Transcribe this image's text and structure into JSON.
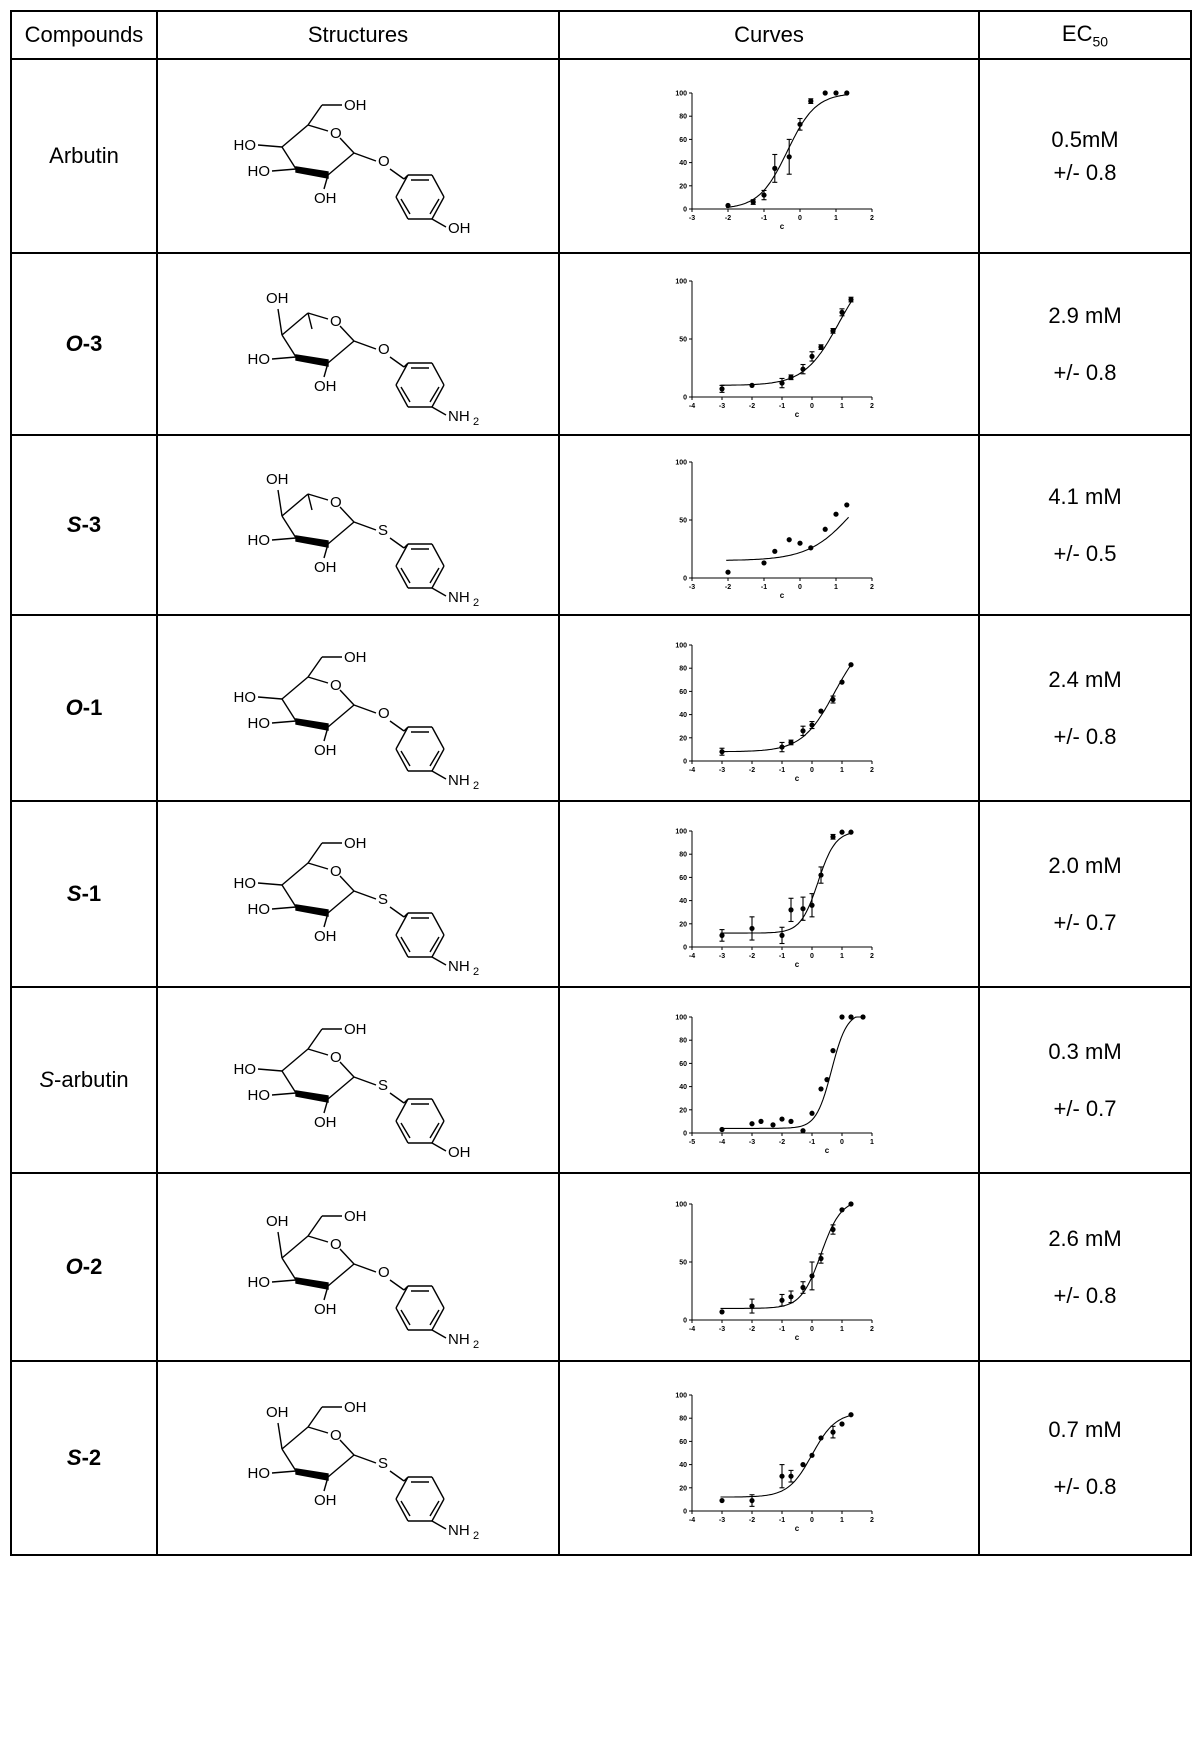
{
  "table": {
    "headers": {
      "compounds": "Compounds",
      "structures": "Structures",
      "curves": "Curves",
      "ec50_main": "EC",
      "ec50_sub": "50"
    }
  },
  "rows": [
    {
      "prefix": "",
      "suffix": "Arbutin",
      "style": "plain",
      "ec_value": "0.5mM",
      "ec_err": "+/- 0.8",
      "gap": false,
      "structure": {
        "sugar": "glc",
        "link": "O",
        "tail": "OH"
      }
    },
    {
      "prefix": "O",
      "suffix": "-3",
      "style": "bold",
      "ec_value": "2.9 mM",
      "ec_err": "+/- 0.8",
      "gap": true,
      "structure": {
        "sugar": "fuc",
        "link": "O",
        "tail": "NH"
      }
    },
    {
      "prefix": "S",
      "suffix": "-3",
      "style": "bold",
      "ec_value": "4.1 mM",
      "ec_err": "+/- 0.5",
      "gap": true,
      "structure": {
        "sugar": "fuc",
        "link": "S",
        "tail": "NH"
      }
    },
    {
      "prefix": "O",
      "suffix": "-1",
      "style": "bold",
      "ec_value": "2.4 mM",
      "ec_err": "+/- 0.8",
      "gap": true,
      "structure": {
        "sugar": "glc",
        "link": "O",
        "tail": "NH"
      }
    },
    {
      "prefix": "S",
      "suffix": "-1",
      "style": "bold",
      "ec_value": "2.0 mM",
      "ec_err": "+/- 0.7",
      "gap": true,
      "structure": {
        "sugar": "glc",
        "link": "S",
        "tail": "NH"
      }
    },
    {
      "prefix": "S",
      "suffix": "-arbutin",
      "style": "italic-prefix",
      "ec_value": "0.3 mM",
      "ec_err": "+/- 0.7",
      "gap": true,
      "structure": {
        "sugar": "glc",
        "link": "S",
        "tail": "OH"
      }
    },
    {
      "prefix": "O",
      "suffix": "-2",
      "style": "bold",
      "ec_value": "2.6 mM",
      "ec_err": "+/- 0.8",
      "gap": true,
      "structure": {
        "sugar": "gal",
        "link": "O",
        "tail": "NH"
      }
    },
    {
      "prefix": "S",
      "suffix": "-2",
      "style": "bold",
      "ec_value": "0.7 mM",
      "ec_err": "+/- 0.8",
      "gap": true,
      "structure": {
        "sugar": "gal",
        "link": "S",
        "tail": "NH"
      }
    }
  ],
  "chem_labels": {
    "hydroxyl": "OH",
    "hydroxyl_left": "HO",
    "oxygen": "O",
    "sulfur": "S",
    "amine": "NH",
    "amine_sub": "2"
  },
  "chart_data": [
    {
      "type": "scatter",
      "xlabel": "c",
      "xlim": [
        -3,
        2
      ],
      "ylim": [
        0,
        100
      ],
      "xticks": [
        -3,
        -2,
        -1,
        0,
        1,
        2
      ],
      "yticks": [
        0,
        20,
        40,
        60,
        80,
        100
      ],
      "points": [
        [
          -2,
          3,
          0
        ],
        [
          -1.3,
          6,
          2
        ],
        [
          -1,
          12,
          4
        ],
        [
          -0.7,
          35,
          12
        ],
        [
          -0.3,
          45,
          15
        ],
        [
          0,
          73,
          5
        ],
        [
          0.3,
          93,
          2
        ],
        [
          0.7,
          100,
          0
        ],
        [
          1,
          100,
          0
        ],
        [
          1.3,
          100,
          0
        ]
      ],
      "fit": {
        "bottom": 0,
        "top": 100,
        "logec50": -0.35,
        "hill": 1.1
      }
    },
    {
      "type": "scatter",
      "xlabel": "c",
      "xlim": [
        -4,
        2
      ],
      "ylim": [
        0,
        100
      ],
      "xticks": [
        -4,
        -3,
        -2,
        -1,
        0,
        1,
        2
      ],
      "yticks": [
        0,
        50,
        100
      ],
      "points": [
        [
          -3,
          7,
          3
        ],
        [
          -2,
          10,
          0
        ],
        [
          -1,
          12,
          4
        ],
        [
          -0.7,
          17,
          2
        ],
        [
          -0.3,
          24,
          4
        ],
        [
          0,
          35,
          4
        ],
        [
          0.3,
          43,
          2
        ],
        [
          0.7,
          57,
          2
        ],
        [
          1,
          73,
          3
        ],
        [
          1.3,
          84,
          2
        ]
      ],
      "fit": {
        "bottom": 10,
        "top": 118,
        "logec50": 0.9,
        "hill": 0.75
      }
    },
    {
      "type": "scatter",
      "xlabel": "c",
      "xlim": [
        -3,
        2
      ],
      "ylim": [
        0,
        100
      ],
      "xticks": [
        -3,
        -2,
        -1,
        0,
        1,
        2
      ],
      "yticks": [
        0,
        50,
        100
      ],
      "points": [
        [
          -2,
          5,
          0
        ],
        [
          -1,
          13,
          0
        ],
        [
          -0.7,
          23,
          0
        ],
        [
          -0.3,
          33,
          0
        ],
        [
          0,
          30,
          0
        ],
        [
          0.3,
          26,
          0
        ],
        [
          0.7,
          42,
          0
        ],
        [
          1,
          55,
          0
        ],
        [
          1.3,
          63,
          0
        ]
      ],
      "fit": {
        "bottom": 15,
        "top": 100,
        "logec50": 1.5,
        "hill": 0.7
      }
    },
    {
      "type": "scatter",
      "xlabel": "c",
      "xlim": [
        -4,
        2
      ],
      "ylim": [
        0,
        100
      ],
      "xticks": [
        -4,
        -3,
        -2,
        -1,
        0,
        1,
        2
      ],
      "yticks": [
        0,
        20,
        40,
        60,
        80,
        100
      ],
      "points": [
        [
          -3,
          8,
          3
        ],
        [
          -1,
          12,
          4
        ],
        [
          -0.7,
          16,
          2
        ],
        [
          -0.3,
          26,
          4
        ],
        [
          0,
          31,
          3
        ],
        [
          0.3,
          43,
          0
        ],
        [
          0.7,
          53,
          3
        ],
        [
          1,
          68,
          0
        ],
        [
          1.3,
          83,
          0
        ]
      ],
      "fit": {
        "bottom": 8,
        "top": 110,
        "logec50": 0.75,
        "hill": 0.8
      }
    },
    {
      "type": "scatter",
      "xlabel": "c",
      "xlim": [
        -4,
        2
      ],
      "ylim": [
        0,
        100
      ],
      "xticks": [
        -4,
        -3,
        -2,
        -1,
        0,
        1,
        2
      ],
      "yticks": [
        0,
        20,
        40,
        60,
        80,
        100
      ],
      "points": [
        [
          -3,
          10,
          5
        ],
        [
          -2,
          16,
          10
        ],
        [
          -1,
          10,
          7
        ],
        [
          -0.7,
          32,
          10
        ],
        [
          -0.3,
          33,
          10
        ],
        [
          0,
          36,
          10
        ],
        [
          0.3,
          62,
          7
        ],
        [
          0.7,
          95,
          2
        ],
        [
          1,
          99,
          0
        ],
        [
          1.3,
          99,
          0
        ]
      ],
      "fit": {
        "bottom": 12,
        "top": 100,
        "logec50": 0.2,
        "hill": 1.5
      }
    },
    {
      "type": "scatter",
      "xlabel": "c",
      "xlim": [
        -5,
        1
      ],
      "ylim": [
        0,
        100
      ],
      "xticks": [
        -5,
        -4,
        -3,
        -2,
        -1,
        0,
        1
      ],
      "yticks": [
        0,
        20,
        40,
        60,
        80,
        100
      ],
      "points": [
        [
          -4,
          3,
          0
        ],
        [
          -3,
          8,
          0
        ],
        [
          -2.7,
          10,
          0
        ],
        [
          -2.3,
          7,
          0
        ],
        [
          -2,
          12,
          0
        ],
        [
          -1.7,
          10,
          0
        ],
        [
          -1.3,
          2,
          0
        ],
        [
          -1,
          17,
          0
        ],
        [
          -0.7,
          38,
          0
        ],
        [
          -0.5,
          46,
          0
        ],
        [
          -0.3,
          71,
          0
        ],
        [
          0,
          100,
          0
        ],
        [
          0.3,
          100,
          0
        ],
        [
          0.7,
          100,
          0
        ]
      ],
      "fit": {
        "bottom": 4,
        "top": 104,
        "logec50": -0.35,
        "hill": 1.7
      }
    },
    {
      "type": "scatter",
      "xlabel": "c",
      "xlim": [
        -4,
        2
      ],
      "ylim": [
        0,
        100
      ],
      "xticks": [
        -4,
        -3,
        -2,
        -1,
        0,
        1,
        2
      ],
      "yticks": [
        0,
        50,
        100
      ],
      "points": [
        [
          -3,
          7,
          0
        ],
        [
          -2,
          12,
          6
        ],
        [
          -1,
          17,
          5
        ],
        [
          -0.7,
          20,
          5
        ],
        [
          -0.3,
          28,
          5
        ],
        [
          0,
          38,
          12
        ],
        [
          0.3,
          53,
          4
        ],
        [
          0.7,
          78,
          4
        ],
        [
          1,
          95,
          0
        ],
        [
          1.3,
          100,
          0
        ]
      ],
      "fit": {
        "bottom": 10,
        "top": 104,
        "logec50": 0.3,
        "hill": 1.3
      }
    },
    {
      "type": "scatter",
      "xlabel": "c",
      "xlim": [
        -4,
        2
      ],
      "ylim": [
        0,
        100
      ],
      "xticks": [
        -4,
        -3,
        -2,
        -1,
        0,
        1,
        2
      ],
      "yticks": [
        0,
        20,
        40,
        60,
        80,
        100
      ],
      "points": [
        [
          -3,
          9,
          0
        ],
        [
          -2,
          9,
          5
        ],
        [
          -1,
          30,
          10
        ],
        [
          -0.7,
          30,
          5
        ],
        [
          -0.3,
          40,
          0
        ],
        [
          0,
          48,
          0
        ],
        [
          0.3,
          63,
          0
        ],
        [
          0.7,
          68,
          5
        ],
        [
          1,
          75,
          0
        ],
        [
          1.3,
          83,
          0
        ]
      ],
      "fit": {
        "bottom": 12,
        "top": 85,
        "logec50": 0.0,
        "hill": 1.1
      }
    }
  ]
}
